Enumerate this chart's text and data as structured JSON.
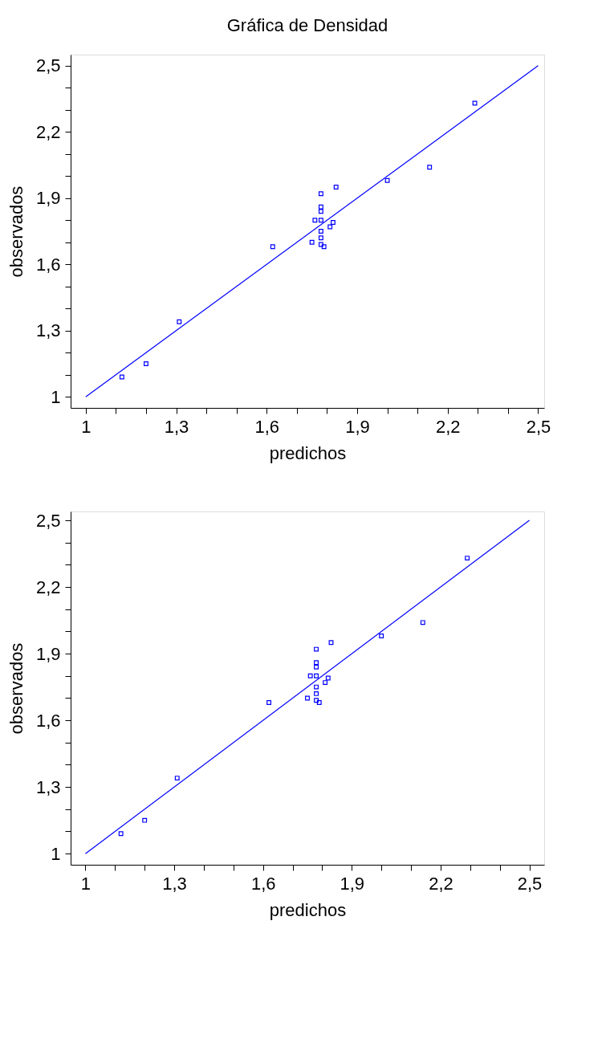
{
  "chart_data": [
    {
      "type": "scatter",
      "title": "Gráfica de Densidad",
      "xlabel": "predichos",
      "ylabel": "observados",
      "xlim": [
        0.95,
        2.52
      ],
      "ylim": [
        0.95,
        2.55
      ],
      "xticks": [
        1,
        {
          "value": 1.1,
          "label": null
        },
        {
          "value": 1.2,
          "label": null
        },
        {
          "value": 1.3,
          "label": "1,3"
        },
        {
          "value": 1.4,
          "label": null
        },
        {
          "value": 1.5,
          "label": null
        },
        {
          "value": 1.6,
          "label": "1,6"
        },
        {
          "value": 1.7,
          "label": null
        },
        {
          "value": 1.8,
          "label": null
        },
        {
          "value": 1.9,
          "label": "1,9"
        },
        {
          "value": 2.0,
          "label": null
        },
        {
          "value": 2.1,
          "label": null
        },
        {
          "value": 2.2,
          "label": "2,2"
        },
        {
          "value": 2.3,
          "label": null
        },
        {
          "value": 2.4,
          "label": null
        },
        {
          "value": 2.5,
          "label": "2,5"
        }
      ],
      "yticks": [
        1,
        {
          "value": 1.1,
          "label": null
        },
        {
          "value": 1.2,
          "label": null
        },
        {
          "value": 1.3,
          "label": "1,3"
        },
        {
          "value": 1.4,
          "label": null
        },
        {
          "value": 1.5,
          "label": null
        },
        {
          "value": 1.6,
          "label": "1,6"
        },
        {
          "value": 1.7,
          "label": null
        },
        {
          "value": 1.8,
          "label": null
        },
        {
          "value": 1.9,
          "label": "1,9"
        },
        {
          "value": 2.0,
          "label": null
        },
        {
          "value": 2.1,
          "label": null
        },
        {
          "value": 2.2,
          "label": "2,2"
        },
        {
          "value": 2.3,
          "label": null
        },
        {
          "value": 2.4,
          "label": null
        },
        {
          "value": 2.5,
          "label": "2,5"
        }
      ],
      "grid": false,
      "series": [
        {
          "marker": "square",
          "color": "#0000ff",
          "x": [
            1.12,
            1.2,
            1.31,
            1.62,
            1.75,
            1.76,
            1.78,
            1.78,
            1.78,
            1.78,
            1.78,
            1.78,
            1.78,
            1.79,
            1.81,
            1.82,
            1.83,
            2.0,
            2.14,
            2.29
          ],
          "values": [
            1.09,
            1.15,
            1.34,
            1.68,
            1.7,
            1.8,
            1.92,
            1.86,
            1.84,
            1.8,
            1.75,
            1.72,
            1.69,
            1.68,
            1.77,
            1.79,
            1.95,
            1.98,
            2.04,
            2.33
          ]
        },
        {
          "type": "line",
          "marker": "none",
          "color": "#0000ff",
          "x": [
            1,
            2.5
          ],
          "values": [
            1,
            2.5
          ]
        }
      ]
    },
    {
      "type": "scatter",
      "xlabel": "predichos",
      "ylabel": "observados",
      "xlim": [
        0.95,
        2.55
      ],
      "ylim": [
        0.95,
        2.54
      ],
      "xticks": [
        1,
        {
          "value": 1.1,
          "label": null
        },
        {
          "value": 1.2,
          "label": null
        },
        {
          "value": 1.3,
          "label": "1,3"
        },
        {
          "value": 1.4,
          "label": null
        },
        {
          "value": 1.5,
          "label": null
        },
        {
          "value": 1.6,
          "label": "1,6"
        },
        {
          "value": 1.7,
          "label": null
        },
        {
          "value": 1.8,
          "label": null
        },
        {
          "value": 1.9,
          "label": "1,9"
        },
        {
          "value": 2.0,
          "label": null
        },
        {
          "value": 2.1,
          "label": null
        },
        {
          "value": 2.2,
          "label": "2,2"
        },
        {
          "value": 2.3,
          "label": null
        },
        {
          "value": 2.4,
          "label": null
        },
        {
          "value": 2.5,
          "label": "2,5"
        }
      ],
      "yticks": [
        1,
        {
          "value": 1.1,
          "label": null
        },
        {
          "value": 1.2,
          "label": null
        },
        {
          "value": 1.3,
          "label": "1,3"
        },
        {
          "value": 1.4,
          "label": null
        },
        {
          "value": 1.5,
          "label": null
        },
        {
          "value": 1.6,
          "label": "1,6"
        },
        {
          "value": 1.7,
          "label": null
        },
        {
          "value": 1.8,
          "label": null
        },
        {
          "value": 1.9,
          "label": "1,9"
        },
        {
          "value": 2.0,
          "label": null
        },
        {
          "value": 2.1,
          "label": null
        },
        {
          "value": 2.2,
          "label": "2,2"
        },
        {
          "value": 2.3,
          "label": null
        },
        {
          "value": 2.4,
          "label": null
        },
        {
          "value": 2.5,
          "label": "2,5"
        }
      ],
      "grid": false,
      "series": [
        {
          "marker": "square",
          "color": "#0000ff",
          "x": [
            1.12,
            1.2,
            1.31,
            1.62,
            1.75,
            1.76,
            1.78,
            1.78,
            1.78,
            1.78,
            1.78,
            1.78,
            1.78,
            1.79,
            1.81,
            1.82,
            1.83,
            2.0,
            2.14,
            2.29
          ],
          "values": [
            1.09,
            1.15,
            1.34,
            1.68,
            1.7,
            1.8,
            1.92,
            1.86,
            1.84,
            1.8,
            1.75,
            1.72,
            1.69,
            1.68,
            1.77,
            1.79,
            1.95,
            1.98,
            2.04,
            2.33
          ]
        },
        {
          "type": "line",
          "marker": "none",
          "color": "#0000ff",
          "x": [
            1,
            2.5
          ],
          "values": [
            1,
            2.5
          ]
        }
      ]
    }
  ]
}
